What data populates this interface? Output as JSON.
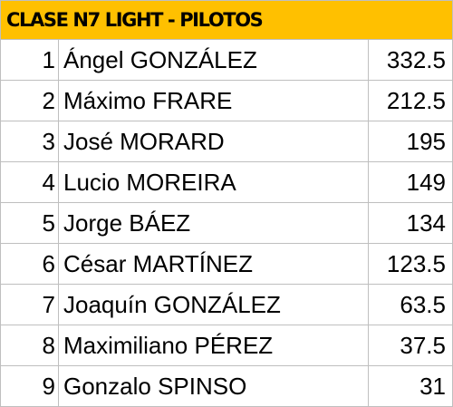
{
  "header": {
    "title": "CLASE N7 LIGHT - PILOTOS",
    "background": "#FFC000"
  },
  "table": {
    "rows": [
      {
        "position": "1",
        "name": "Ángel GONZÁLEZ",
        "points": "332.5"
      },
      {
        "position": "2",
        "name": "Máximo FRARE",
        "points": "212.5"
      },
      {
        "position": "3",
        "name": "José MORARD",
        "points": "195"
      },
      {
        "position": "4",
        "name": "Lucio MOREIRA",
        "points": "149"
      },
      {
        "position": "5",
        "name": "Jorge BÁEZ",
        "points": "134"
      },
      {
        "position": "6",
        "name": "César MARTÍNEZ",
        "points": "123.5"
      },
      {
        "position": "7",
        "name": "Joaquín GONZÁLEZ",
        "points": "63.5"
      },
      {
        "position": "8",
        "name": "Maximiliano PÉREZ",
        "points": "37.5"
      },
      {
        "position": "9",
        "name": "Gonzalo SPINSO",
        "points": "31"
      }
    ]
  }
}
